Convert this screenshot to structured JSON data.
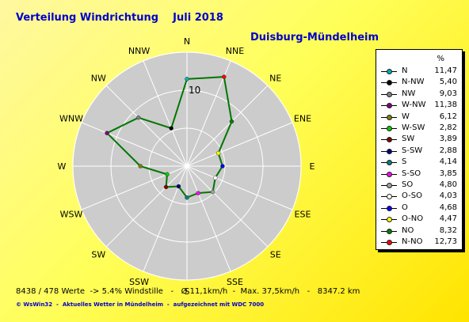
{
  "header": {
    "title": "Verteilung Windrichtung    Juli 2018",
    "station": "Duisburg-Mündelheim"
  },
  "chart_data": {
    "type": "radar",
    "title": "Verteilung Windrichtung    Juli 2018",
    "unit": "%",
    "ring_label": "10",
    "rmax": 15,
    "rings": [
      5,
      10,
      15
    ],
    "directions": [
      "N",
      "NNE",
      "NE",
      "ENE",
      "E",
      "ESE",
      "SE",
      "SSE",
      "S",
      "SSW",
      "SW",
      "WSW",
      "W",
      "WNW",
      "NW",
      "NNW"
    ],
    "series": [
      {
        "values": [
          11.47,
          12.73,
          8.32,
          4.47,
          4.68,
          4.03,
          4.8,
          3.85,
          4.14,
          2.88,
          3.89,
          2.82,
          6.12,
          11.38,
          9.03,
          5.4
        ]
      }
    ],
    "line_color": "#007700",
    "grid_fill": "#cccccc",
    "legend_position": "right"
  },
  "legend": {
    "unit": "%",
    "items": [
      {
        "dir": "N",
        "value": "11,47",
        "color": "#00b0b0"
      },
      {
        "dir": "N-NW",
        "value": "5,40",
        "color": "#000000"
      },
      {
        "dir": "NW",
        "value": "9,03",
        "color": "#808080"
      },
      {
        "dir": "W-NW",
        "value": "11,38",
        "color": "#800080"
      },
      {
        "dir": "W",
        "value": "6,12",
        "color": "#808000"
      },
      {
        "dir": "W-SW",
        "value": "2,82",
        "color": "#00cc00"
      },
      {
        "dir": "SW",
        "value": "3,89",
        "color": "#800000"
      },
      {
        "dir": "S-SW",
        "value": "2,88",
        "color": "#000080"
      },
      {
        "dir": "S",
        "value": "4,14",
        "color": "#008080"
      },
      {
        "dir": "S-SO",
        "value": "3,85",
        "color": "#ff00ff"
      },
      {
        "dir": "SO",
        "value": "4,80",
        "color": "#a0a0a0"
      },
      {
        "dir": "O-SO",
        "value": "4,03",
        "color": "#ffffff"
      },
      {
        "dir": "O",
        "value": "4,68",
        "color": "#0000ff"
      },
      {
        "dir": "O-NO",
        "value": "4,47",
        "color": "#ffff00"
      },
      {
        "dir": "NO",
        "value": "8,32",
        "color": "#008000"
      },
      {
        "dir": "N-NO",
        "value": "12,73",
        "color": "#ff0000"
      }
    ]
  },
  "stats": "8438 / 478 Werte  -> 5.4% Windstille   -   Ø 11,1km/h  -  Max. 37,5km/h   -   8347.2 km",
  "footer": "© WsWin32  -  Aktuelles Wetter in Mündelheim  -  aufgezeichnet mit WDC 7000"
}
